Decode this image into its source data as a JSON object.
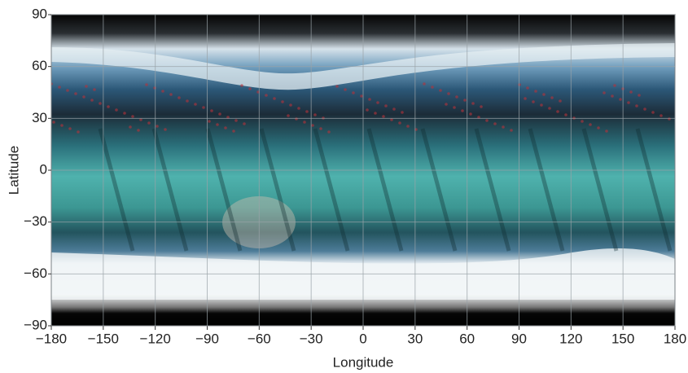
{
  "chart_data": {
    "type": "map",
    "xlabel": "Longitude",
    "ylabel": "Latitude",
    "xlim": [
      -180,
      180
    ],
    "ylim": [
      -90,
      90
    ],
    "xticks": [
      {
        "value": -180,
        "label": "−180"
      },
      {
        "value": -150,
        "label": "−150"
      },
      {
        "value": -120,
        "label": "−120"
      },
      {
        "value": -90,
        "label": "−90"
      },
      {
        "value": -60,
        "label": "−60"
      },
      {
        "value": -30,
        "label": "−30"
      },
      0,
      30,
      60,
      90,
      120,
      150,
      180
    ],
    "yticks": [
      {
        "value": -90,
        "label": "−90"
      },
      {
        "value": -60,
        "label": "−60"
      },
      {
        "value": -30,
        "label": "−30"
      },
      0,
      30,
      60,
      90
    ],
    "grid": true
  }
}
